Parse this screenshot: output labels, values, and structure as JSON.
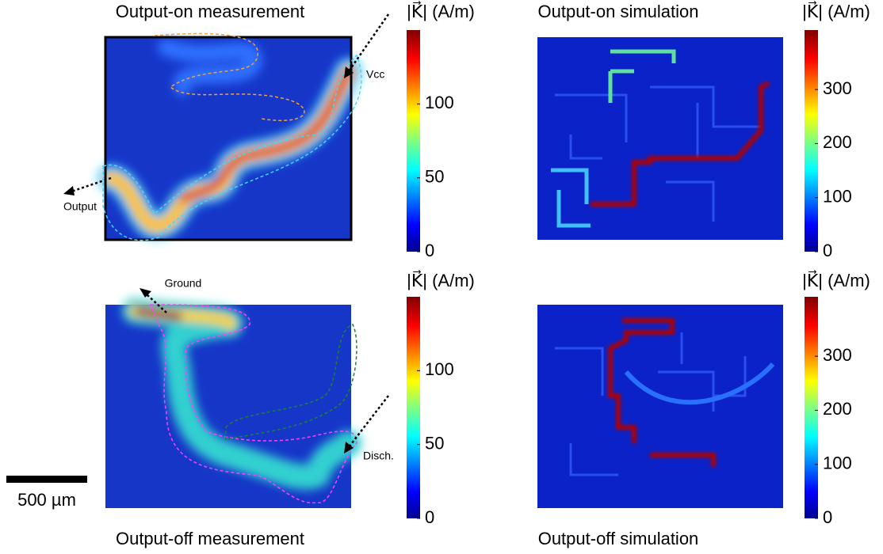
{
  "panels": [
    {
      "title": "Output-on measurement",
      "colorbar": {
        "label": "|K⃗| (A/m)",
        "lim": [
          0,
          150
        ],
        "ticks": [
          0,
          50,
          100
        ]
      },
      "annotations": [
        "Vcc",
        "Output"
      ]
    },
    {
      "title": "Output-on simulation",
      "colorbar": {
        "label": "|K⃗| (A/m)",
        "lim": [
          0,
          410
        ],
        "ticks": [
          0,
          100,
          200,
          300
        ]
      },
      "annotations": []
    },
    {
      "title": "Output-off measurement",
      "colorbar": {
        "label": "|K⃗| (A/m)",
        "lim": [
          0,
          150
        ],
        "ticks": [
          0,
          50,
          100
        ]
      },
      "annotations": [
        "Ground",
        "Disch."
      ]
    },
    {
      "title": "Output-off simulation",
      "colorbar": {
        "label": "|K⃗| (A/m)",
        "lim": [
          0,
          410
        ],
        "ticks": [
          0,
          100,
          200,
          300
        ]
      },
      "annotations": []
    }
  ],
  "scale_bar": "500 µm"
}
